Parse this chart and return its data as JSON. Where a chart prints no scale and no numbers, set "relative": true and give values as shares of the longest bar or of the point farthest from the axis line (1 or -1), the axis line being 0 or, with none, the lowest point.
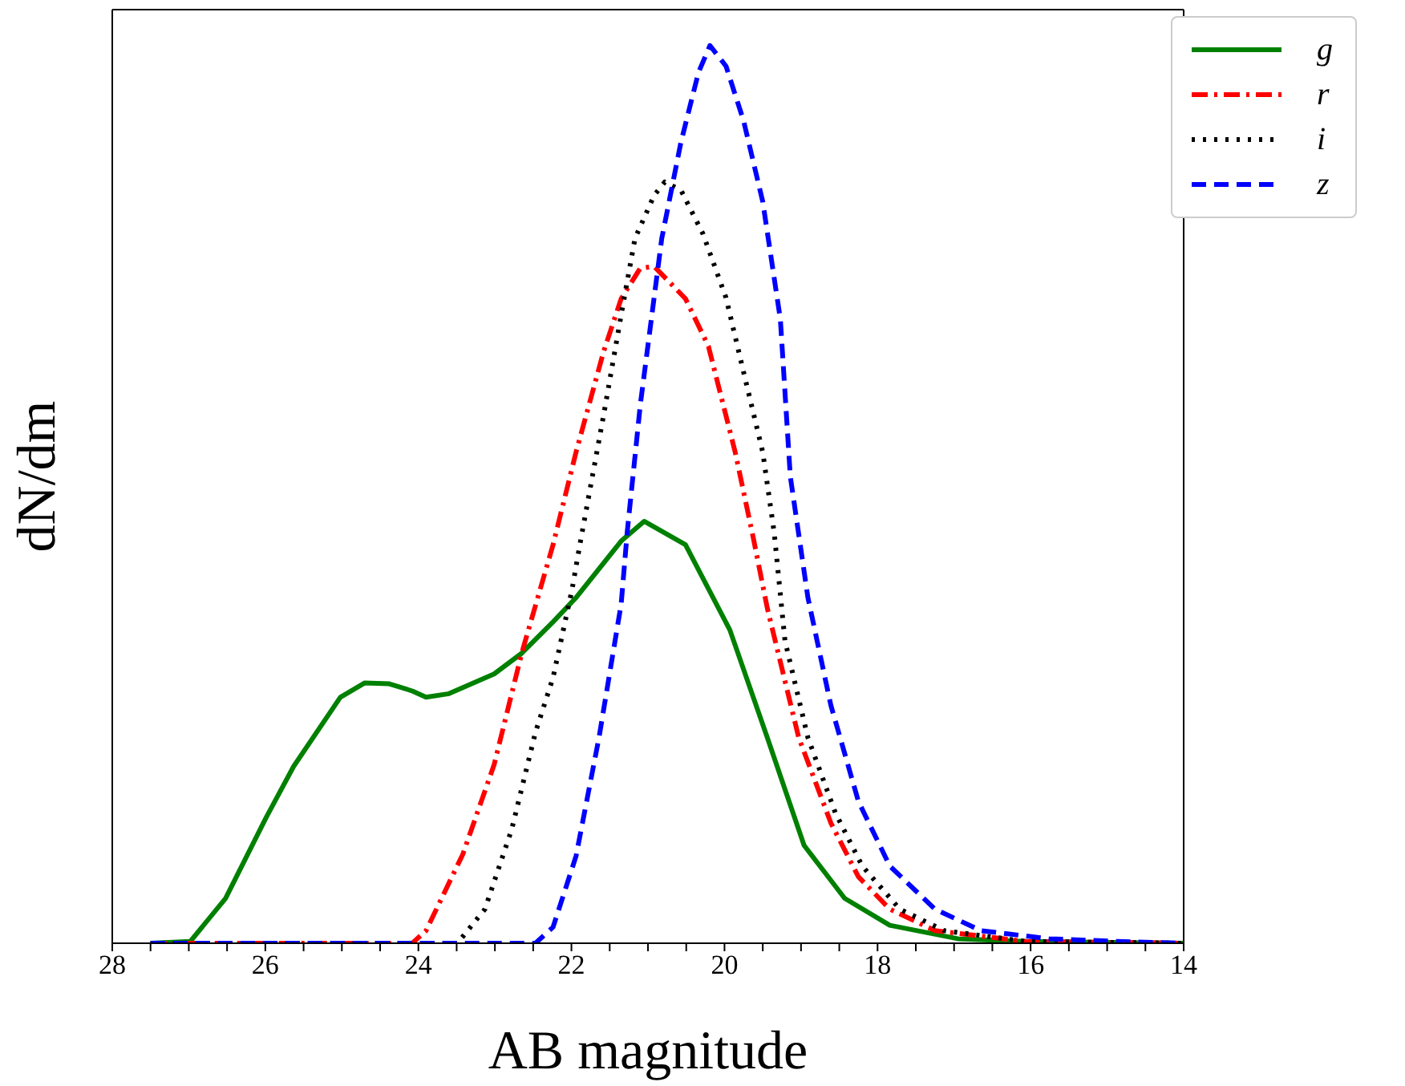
{
  "chart_data": {
    "type": "line",
    "relative": true,
    "xlabel": "AB magnitude",
    "ylabel": "dN/dm",
    "xlim": [
      28,
      14
    ],
    "xticks": [
      28,
      {
        "value": 27.5,
        "label": null
      },
      {
        "value": 27,
        "label": null
      },
      {
        "value": 26.5,
        "label": null
      },
      26,
      {
        "value": 25.5,
        "label": null
      },
      {
        "value": 25,
        "label": null
      },
      {
        "value": 24.5,
        "label": null
      },
      24,
      {
        "value": 23.5,
        "label": null
      },
      {
        "value": 23,
        "label": null
      },
      {
        "value": 22.5,
        "label": null
      },
      22,
      {
        "value": 21.5,
        "label": null
      },
      {
        "value": 21,
        "label": null
      },
      {
        "value": 20.5,
        "label": null
      },
      20,
      {
        "value": 19.5,
        "label": null
      },
      {
        "value": 19,
        "label": null
      },
      {
        "value": 18.5,
        "label": null
      },
      18,
      {
        "value": 17.5,
        "label": null
      },
      {
        "value": 17,
        "label": null
      },
      {
        "value": 16.5,
        "label": null
      },
      16,
      {
        "value": 15.5,
        "label": null
      },
      {
        "value": 15,
        "label": null
      },
      {
        "value": 14.5,
        "label": null
      },
      14
    ],
    "legend": "top right",
    "grid": false,
    "marker": "none",
    "series": [
      {
        "name": "g",
        "color": "#008000",
        "line_style": "solid",
        "x": [
          27.5,
          26.98,
          26.52,
          25.99,
          25.63,
          25.02,
          24.7,
          24.38,
          24.08,
          23.9,
          23.6,
          23.01,
          22.65,
          22.24,
          21.94,
          21.35,
          21.05,
          20.51,
          19.93,
          19.44,
          18.96,
          18.43,
          17.84,
          16.95,
          16.06,
          14
        ],
        "values": [
          0,
          0.002,
          0.05,
          0.14,
          0.197,
          0.274,
          0.29,
          0.289,
          0.281,
          0.274,
          0.278,
          0.3,
          0.323,
          0.358,
          0.385,
          0.448,
          0.47,
          0.444,
          0.349,
          0.229,
          0.109,
          0.05,
          0.02,
          0.005,
          0.002,
          0
        ]
      },
      {
        "name": "r",
        "color": "#ff0000",
        "line_style": "dashdot",
        "x": [
          27.5,
          24.08,
          23.9,
          23.42,
          23.01,
          22.65,
          22.24,
          21.94,
          21.58,
          21.35,
          21.1,
          20.92,
          20.51,
          20.21,
          19.86,
          19.62,
          19.44,
          19.03,
          18.61,
          18.25,
          17.84,
          17.25,
          16.06,
          14
        ],
        "values": [
          0,
          0,
          0.014,
          0.099,
          0.199,
          0.323,
          0.444,
          0.547,
          0.659,
          0.718,
          0.752,
          0.754,
          0.718,
          0.665,
          0.547,
          0.45,
          0.373,
          0.229,
          0.134,
          0.074,
          0.038,
          0.014,
          0.002,
          0
        ]
      },
      {
        "name": "i",
        "color": "#000000",
        "line_style": "dotted",
        "x": [
          27.5,
          23.49,
          23.13,
          22.78,
          22.47,
          22.24,
          21.99,
          21.89,
          21.58,
          21.35,
          21.17,
          20.92,
          20.78,
          20.57,
          20.28,
          19.98,
          19.75,
          19.5,
          19.35,
          19.21,
          18.91,
          18.55,
          18.2,
          17.71,
          17.13,
          16.06,
          14
        ],
        "values": [
          0,
          0,
          0.038,
          0.127,
          0.235,
          0.296,
          0.395,
          0.444,
          0.588,
          0.7,
          0.785,
          0.833,
          0.848,
          0.839,
          0.79,
          0.719,
          0.636,
          0.547,
          0.457,
          0.337,
          0.229,
          0.145,
          0.086,
          0.038,
          0.014,
          0.002,
          0
        ]
      },
      {
        "name": "z",
        "color": "#0000ff",
        "line_style": "dashed",
        "x": [
          27.5,
          22.47,
          22.24,
          21.94,
          21.64,
          21.35,
          21.27,
          21.1,
          20.82,
          20.57,
          20.34,
          20.19,
          19.98,
          19.75,
          19.5,
          19.27,
          19.14,
          18.91,
          18.61,
          18.25,
          17.84,
          17.25,
          16.65,
          15.76,
          14.86,
          14
        ],
        "values": [
          0,
          0,
          0.018,
          0.097,
          0.229,
          0.378,
          0.459,
          0.6,
          0.785,
          0.892,
          0.97,
          1,
          0.977,
          0.916,
          0.826,
          0.695,
          0.52,
          0.385,
          0.265,
          0.158,
          0.086,
          0.038,
          0.014,
          0.005,
          0.002,
          0
        ]
      }
    ]
  }
}
